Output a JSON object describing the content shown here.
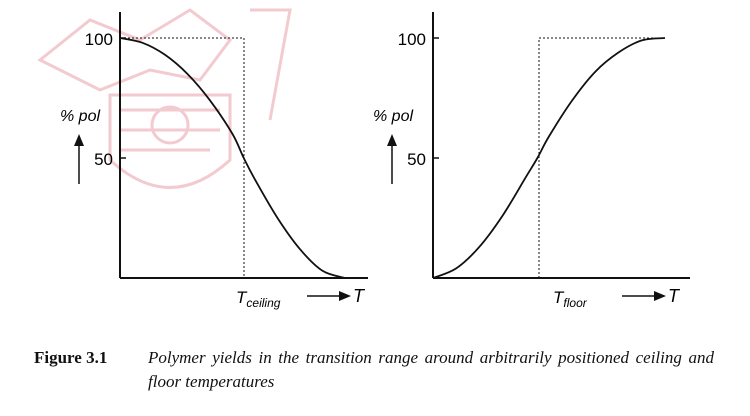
{
  "colors": {
    "ink": "#111111",
    "watermark": "#e8a0a8"
  },
  "chart_data": [
    {
      "type": "line",
      "title": "",
      "ylabel": "% pol",
      "xlabel": "T",
      "threshold_label": {
        "main": "T",
        "sub": "ceiling"
      },
      "yticks": [
        50,
        100
      ],
      "ylim": [
        0,
        100
      ],
      "threshold_x": 0.55,
      "series": [
        {
          "x": [
            0,
            0.1,
            0.2,
            0.3,
            0.4,
            0.5,
            0.55,
            0.6,
            0.7,
            0.8,
            0.9,
            1.0
          ],
          "y": [
            100,
            98,
            93,
            85,
            74,
            60,
            50,
            41,
            25,
            12,
            3,
            0
          ]
        }
      ],
      "guides": {
        "step_curve": true,
        "dotted": true
      }
    },
    {
      "type": "line",
      "title": "",
      "ylabel": "% pol",
      "xlabel": "T",
      "threshold_label": {
        "main": "T",
        "sub": "floor"
      },
      "yticks": [
        50,
        100
      ],
      "ylim": [
        0,
        100
      ],
      "threshold_x": 0.45,
      "series": [
        {
          "x": [
            0,
            0.1,
            0.2,
            0.3,
            0.4,
            0.45,
            0.5,
            0.6,
            0.7,
            0.8,
            0.9,
            1.0
          ],
          "y": [
            0,
            4,
            13,
            26,
            42,
            50,
            59,
            74,
            86,
            94,
            99,
            100
          ]
        }
      ],
      "guides": {
        "step_curve": true,
        "dotted": true
      }
    }
  ],
  "caption": {
    "label": "Figure 3.1",
    "text": "Polymer yields in the transition range around arbitrarily positioned ceiling and floor temperatures"
  }
}
